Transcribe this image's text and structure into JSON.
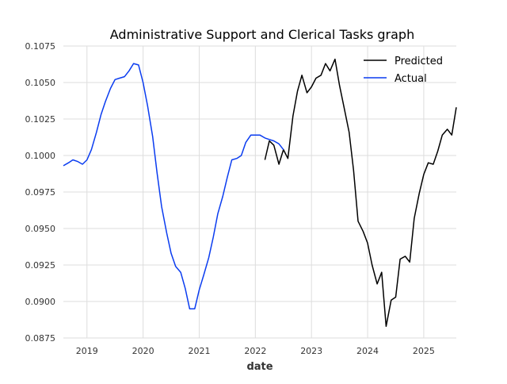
{
  "chart_data": {
    "type": "line",
    "title": "Administrative Support and Clerical Tasks graph",
    "xlabel": "date",
    "ylabel": "",
    "grid": true,
    "legend_position": "top-right",
    "xlim": [
      2018.58,
      2025.58
    ],
    "ylim": [
      0.0875,
      0.1075
    ],
    "x_ticks": [
      {
        "value": 2019,
        "label": "2019"
      },
      {
        "value": 2020,
        "label": "2020"
      },
      {
        "value": 2021,
        "label": "2021"
      },
      {
        "value": 2022,
        "label": "2022"
      },
      {
        "value": 2023,
        "label": "2023"
      },
      {
        "value": 2024,
        "label": "2024"
      },
      {
        "value": 2025,
        "label": "2025"
      }
    ],
    "y_ticks": [
      {
        "value": 0.0875,
        "label": "0.0875"
      },
      {
        "value": 0.09,
        "label": "0.0900"
      },
      {
        "value": 0.0925,
        "label": "0.0925"
      },
      {
        "value": 0.095,
        "label": "0.0950"
      },
      {
        "value": 0.0975,
        "label": "0.0975"
      },
      {
        "value": 0.1,
        "label": "0.1000"
      },
      {
        "value": 0.1025,
        "label": "0.1025"
      },
      {
        "value": 0.105,
        "label": "0.1050"
      },
      {
        "value": 0.1075,
        "label": "0.1075"
      }
    ],
    "series": [
      {
        "name": "Predicted",
        "color": "#000000",
        "points": [
          [
            2022.17,
            0.0997
          ],
          [
            2022.25,
            0.101
          ],
          [
            2022.33,
            0.1007
          ],
          [
            2022.42,
            0.0994
          ],
          [
            2022.5,
            0.1004
          ],
          [
            2022.58,
            0.0998
          ],
          [
            2022.67,
            0.1027
          ],
          [
            2022.75,
            0.1044
          ],
          [
            2022.83,
            0.1055
          ],
          [
            2022.92,
            0.1043
          ],
          [
            2023.0,
            0.1047
          ],
          [
            2023.08,
            0.1053
          ],
          [
            2023.17,
            0.1055
          ],
          [
            2023.25,
            0.1063
          ],
          [
            2023.33,
            0.1058
          ],
          [
            2023.42,
            0.1066
          ],
          [
            2023.5,
            0.1048
          ],
          [
            2023.58,
            0.1033
          ],
          [
            2023.67,
            0.1016
          ],
          [
            2023.75,
            0.099
          ],
          [
            2023.83,
            0.0955
          ],
          [
            2023.92,
            0.0948
          ],
          [
            2024.0,
            0.094
          ],
          [
            2024.08,
            0.0925
          ],
          [
            2024.17,
            0.0912
          ],
          [
            2024.25,
            0.092
          ],
          [
            2024.33,
            0.0883
          ],
          [
            2024.42,
            0.0901
          ],
          [
            2024.5,
            0.0903
          ],
          [
            2024.58,
            0.0929
          ],
          [
            2024.67,
            0.0931
          ],
          [
            2024.75,
            0.0927
          ],
          [
            2024.83,
            0.0957
          ],
          [
            2024.92,
            0.0974
          ],
          [
            2025.0,
            0.0987
          ],
          [
            2025.08,
            0.0995
          ],
          [
            2025.17,
            0.0994
          ],
          [
            2025.25,
            0.1003
          ],
          [
            2025.33,
            0.1014
          ],
          [
            2025.42,
            0.1018
          ],
          [
            2025.5,
            0.1014
          ],
          [
            2025.58,
            0.1033
          ]
        ]
      },
      {
        "name": "Actual",
        "color": "#0a3cf0",
        "points": [
          [
            2018.58,
            0.0993
          ],
          [
            2018.67,
            0.0995
          ],
          [
            2018.75,
            0.0997
          ],
          [
            2018.83,
            0.0996
          ],
          [
            2018.92,
            0.0994
          ],
          [
            2019.0,
            0.0997
          ],
          [
            2019.08,
            0.1004
          ],
          [
            2019.17,
            0.1016
          ],
          [
            2019.25,
            0.1028
          ],
          [
            2019.33,
            0.1037
          ],
          [
            2019.42,
            0.1046
          ],
          [
            2019.5,
            0.1052
          ],
          [
            2019.58,
            0.1053
          ],
          [
            2019.67,
            0.1054
          ],
          [
            2019.75,
            0.1058
          ],
          [
            2019.83,
            0.1063
          ],
          [
            2019.92,
            0.1062
          ],
          [
            2020.0,
            0.105
          ],
          [
            2020.08,
            0.1034
          ],
          [
            2020.17,
            0.1013
          ],
          [
            2020.25,
            0.0988
          ],
          [
            2020.33,
            0.0965
          ],
          [
            2020.42,
            0.0947
          ],
          [
            2020.5,
            0.0933
          ],
          [
            2020.58,
            0.0924
          ],
          [
            2020.67,
            0.092
          ],
          [
            2020.75,
            0.0909
          ],
          [
            2020.83,
            0.0895
          ],
          [
            2020.92,
            0.0895
          ],
          [
            2021.0,
            0.0908
          ],
          [
            2021.08,
            0.0918
          ],
          [
            2021.17,
            0.093
          ],
          [
            2021.25,
            0.0944
          ],
          [
            2021.33,
            0.096
          ],
          [
            2021.42,
            0.0972
          ],
          [
            2021.5,
            0.0985
          ],
          [
            2021.58,
            0.0997
          ],
          [
            2021.67,
            0.0998
          ],
          [
            2021.75,
            0.1
          ],
          [
            2021.83,
            0.1009
          ],
          [
            2021.92,
            0.1014
          ],
          [
            2022.0,
            0.1014
          ],
          [
            2022.08,
            0.1014
          ],
          [
            2022.17,
            0.1012
          ],
          [
            2022.25,
            0.1011
          ],
          [
            2022.33,
            0.101
          ],
          [
            2022.42,
            0.1008
          ],
          [
            2022.5,
            0.1004
          ]
        ]
      }
    ]
  }
}
